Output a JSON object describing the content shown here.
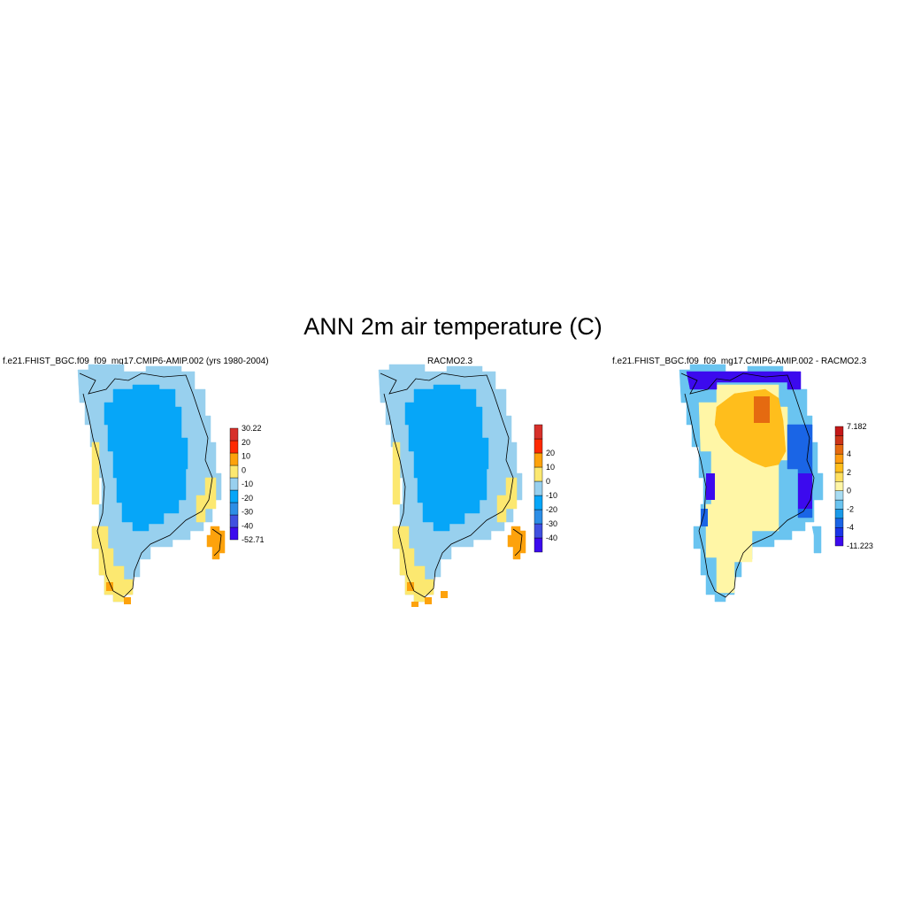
{
  "figure": {
    "title": "ANN 2m air temperature (C)"
  },
  "panels": [
    {
      "title": "f.e21.FHIST_BGC.f09_f09_mg17.CMIP6-AMIP.002 (yrs 1980-2004)",
      "colorbar": {
        "colors": [
          "#3c0aee",
          "#4050e0",
          "#2d8ee6",
          "#06a6f8",
          "#98d0ee",
          "#fce870",
          "#fda20c",
          "#fe2a02",
          "#d7302a"
        ],
        "labels": [
          "-52.71",
          "-40",
          "-30",
          "-20",
          "-10",
          "0",
          "10",
          "20",
          "30.22"
        ],
        "label_style": "edges"
      }
    },
    {
      "title": "RACMO2.3",
      "colorbar": {
        "colors": [
          "#3c0aee",
          "#4050e0",
          "#2d8ee6",
          "#06a6f8",
          "#98d0ee",
          "#fce870",
          "#fda20c",
          "#fe2a02",
          "#d7302a"
        ],
        "labels": [
          "-40",
          "-30",
          "-20",
          "-10",
          "0",
          "10",
          "20"
        ],
        "label_style": "interior"
      }
    },
    {
      "title": "f.e21.FHIST_BGC.f09_f09_mg17.CMIP6-AMIP.002 - RACMO2.3",
      "colorbar": {
        "colors": [
          "#3c0aee",
          "#1a35e8",
          "#1a65e6",
          "#1a9ae8",
          "#6ac4f0",
          "#a8dcf2",
          "#fff6a6",
          "#ffe060",
          "#ffbe1c",
          "#ff9c10",
          "#e56a10",
          "#cc3418",
          "#c41818"
        ],
        "labels": [
          "-11.223",
          "",
          "-4",
          "",
          "-2",
          "",
          "0",
          "",
          "2",
          "",
          "4",
          "",
          "",
          "7.182"
        ],
        "label_style": "edges-sparse"
      }
    }
  ],
  "map_colors": {
    "very_cold": "#06a6f8",
    "cold": "#98d0ee",
    "mild": "#fce870",
    "warm": "#fda20c",
    "diff_warm": "#ffbe1c",
    "diff_pale": "#fff6a6",
    "diff_cool": "#6ac4f0",
    "diff_cold": "#3c0aee",
    "diff_mid": "#1a65e6"
  }
}
